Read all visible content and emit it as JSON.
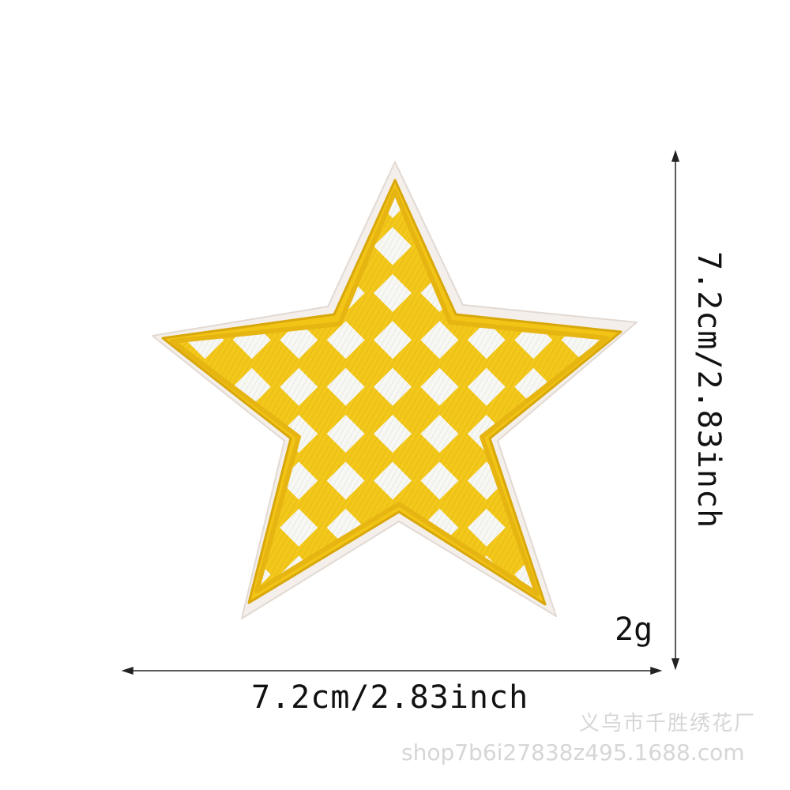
{
  "product": {
    "name": "yellow-checkered-star-patch",
    "colors": {
      "felt": "#f4efeb",
      "felt_edge": "#e4dcd6",
      "yellow": "#f3c81a",
      "yellow_dark": "#d9a808",
      "white_check": "#f7f7f4"
    }
  },
  "dimensions": {
    "width_label": "7.2cm/2.83inch",
    "height_label": "7.2cm/2.83inch",
    "weight_label": "2g"
  },
  "watermark": {
    "line1": "义乌市千胜绣花厂",
    "line2": "shop7b6i27838z495.1688.com"
  }
}
